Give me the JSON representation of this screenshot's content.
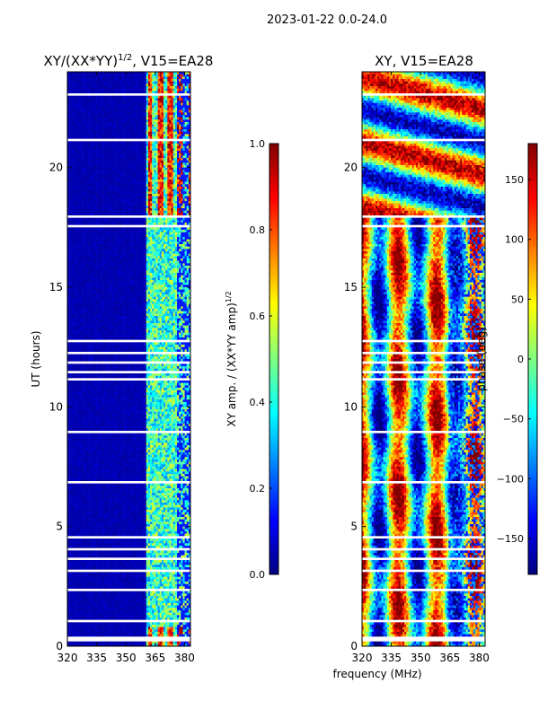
{
  "suptitle": "2023-01-22 0.0-24.0",
  "colors": {
    "jet": [
      "#00007f",
      "#0000ff",
      "#007fff",
      "#00ffff",
      "#7fff7f",
      "#ffff00",
      "#ff7f00",
      "#ff0000",
      "#7f0000"
    ],
    "frame": "#000000",
    "gap": "#ffffff"
  },
  "chart_data": [
    {
      "type": "heatmap",
      "title_main": "XY/(XX*YY)",
      "title_exp": "1/2",
      "title_tail": ", V15=EA28",
      "ylabel": "UT (hours)",
      "xlabel": "",
      "xlim": [
        320,
        383
      ],
      "ylim": [
        0,
        24
      ],
      "xticks": [
        320,
        335,
        350,
        365,
        380
      ],
      "yticks": [
        0,
        5,
        10,
        15,
        20
      ],
      "colorbar": {
        "label_main": "XY amp. / (XX*YY amp)",
        "label_exp": "1/2",
        "range": [
          0.0,
          1.0
        ],
        "ticks": [
          "0.0",
          "0.2",
          "0.4",
          "0.6",
          "0.8",
          "1.0"
        ]
      },
      "description": "normalized cross-correlation amplitude; near 0.0 below 360 MHz, 0.3-0.7 at 360-383 MHz, up to 1.0 near 365-380 MHz between 18 and 24 h and below 1 h",
      "flagged_hours": [
        0.7,
        0.9,
        1.0,
        6.6,
        7.0,
        7.3,
        14.8,
        15.0,
        15.6,
        17.6,
        17.8,
        18.0
      ]
    },
    {
      "type": "heatmap",
      "title_main": "XY, V15=EA28",
      "ylabel": "",
      "xlabel": "frequency (MHz)",
      "xlim": [
        320,
        383
      ],
      "ylim": [
        0,
        24
      ],
      "xticks": [
        320,
        335,
        350,
        365,
        380
      ],
      "yticks": [
        0,
        5,
        10,
        15,
        20
      ],
      "colorbar": {
        "label_main": "phase (deg)",
        "range": [
          -180,
          180
        ],
        "ticks": [
          "−150",
          "−100",
          "−50",
          "0",
          "50",
          "100",
          "150"
        ]
      },
      "description": "cross-correlation phase spanning -180 to 180 degrees with vertical stripes versus frequency below 18 h and horizontal banding above 18 h",
      "flagged_hours": [
        0.7,
        0.9,
        1.0,
        6.6,
        7.0,
        7.3,
        14.8,
        15.0,
        15.6,
        17.6,
        17.8,
        18.0
      ]
    }
  ]
}
